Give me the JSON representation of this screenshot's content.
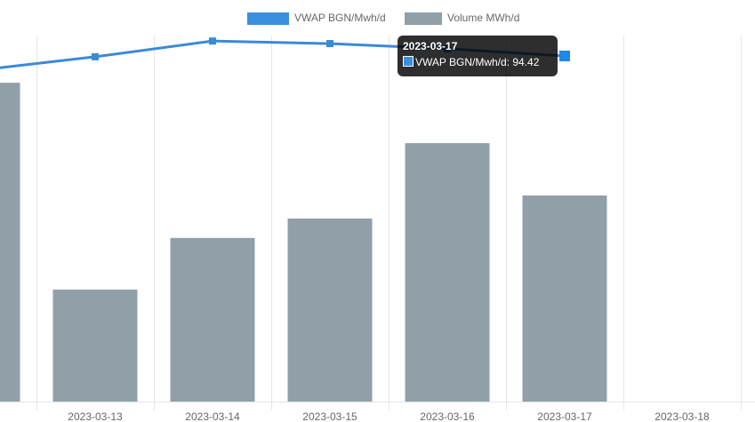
{
  "chart_data": {
    "type": "bar-line",
    "categories": [
      null,
      "2023-03-13",
      "2023-03-14",
      "2023-03-15",
      "2023-03-16",
      "2023-03-17",
      "2023-03-18"
    ],
    "series": [
      {
        "name": "VWAP BGN/Mwh/d",
        "type": "line",
        "color": "#3a8ad6",
        "axis": "y",
        "values": [
          90.5,
          94.2,
          98.5,
          97.8,
          96.4,
          94.42,
          null
        ]
      },
      {
        "name": "Volume MWh/d",
        "type": "bar",
        "color": "#909fa8",
        "axis": "y2",
        "values": [
          87.1,
          30.6,
          44.7,
          50.0,
          70.6,
          56.3,
          null
        ]
      }
    ],
    "ylim": [
      0,
      100
    ],
    "y2lim": [
      0,
      100
    ],
    "tooltip": {
      "title": "2023-03-17",
      "series": 0,
      "index": 5
    }
  }
}
